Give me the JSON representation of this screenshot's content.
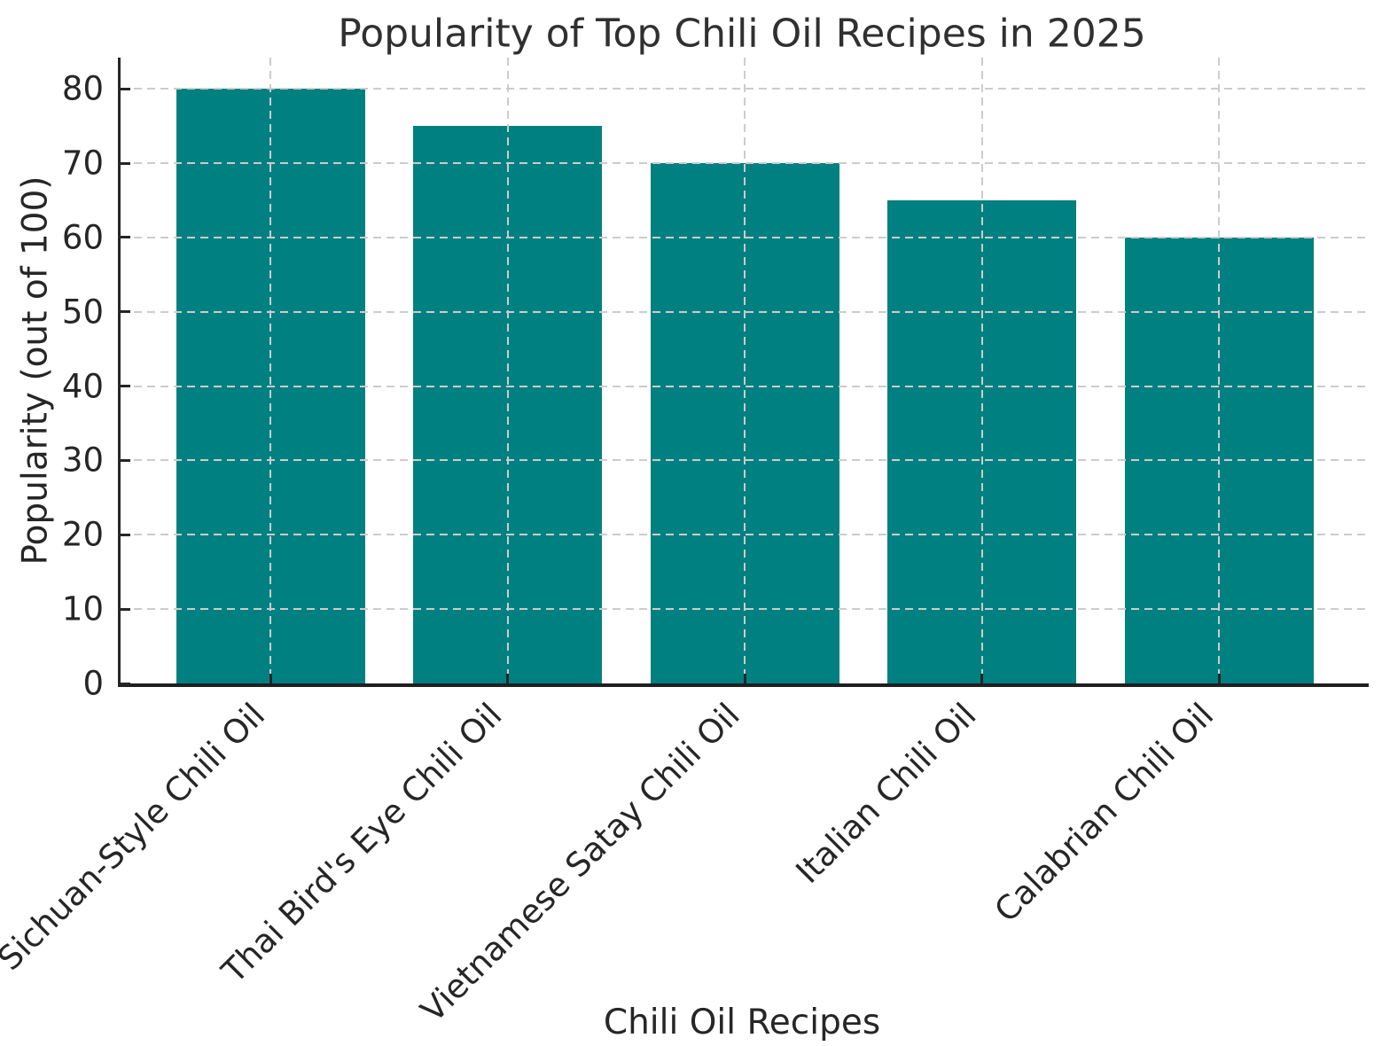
{
  "chart_data": {
    "type": "bar",
    "title": "Popularity of Top Chili Oil Recipes in 2025",
    "xlabel": "Chili Oil Recipes",
    "ylabel": "Popularity (out of 100)",
    "categories": [
      "Sichuan-Style Chili Oil",
      "Thai Bird's Eye Chili Oil",
      "Vietnamese Satay Chili Oil",
      "Italian Chili Oil",
      "Calabrian Chili Oil"
    ],
    "values": [
      80,
      75,
      70,
      65,
      60
    ],
    "yticks": [
      0,
      10,
      20,
      30,
      40,
      50,
      60,
      70,
      80
    ],
    "ylim": [
      0,
      84.2
    ],
    "bar_color": "#008080",
    "grid_color": "#cccccc",
    "grid_style": "dashed",
    "axis_color": "#262626",
    "text_color": "#262626",
    "background": "#ffffff",
    "legend": "none"
  }
}
